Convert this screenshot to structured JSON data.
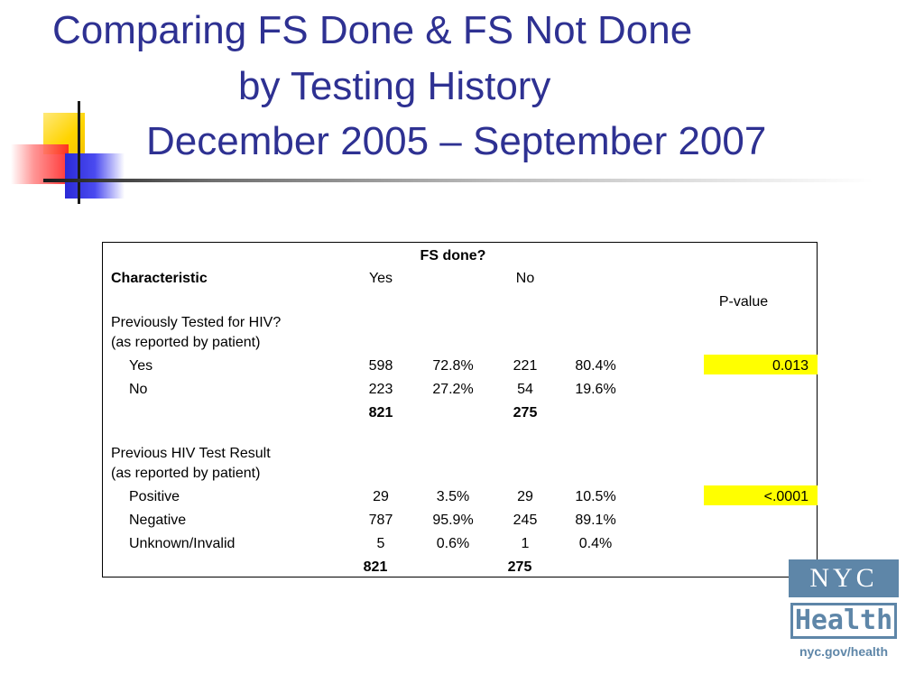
{
  "slide": {
    "title_line1": "Comparing FS Done & FS Not Done",
    "title_line2": "by Testing History",
    "title_line3": "December 2005 – September 2007",
    "title_color": "#2e3192"
  },
  "table": {
    "group_header": "FS done?",
    "col_characteristic": "Characteristic",
    "col_yes": "Yes",
    "col_no": "No",
    "col_pvalue": "P-value",
    "highlight_color": "#ffff00",
    "section1": {
      "label_line1": "Previously Tested for HIV?",
      "label_line2": "(as reported by patient)",
      "rows": [
        {
          "label": "Yes",
          "yes_n": "598",
          "yes_pct": "72.8%",
          "no_n": "221",
          "no_pct": "80.4%",
          "pvalue": "0.013"
        },
        {
          "label": "No",
          "yes_n": "223",
          "yes_pct": "27.2%",
          "no_n": "54",
          "no_pct": "19.6%",
          "pvalue": ""
        }
      ],
      "total_yes": "821",
      "total_no": "275"
    },
    "section2": {
      "label_line1": "Previous HIV Test Result",
      "label_line2": "(as reported by patient)",
      "rows": [
        {
          "label": "Positive",
          "yes_n": "29",
          "yes_pct": "3.5%",
          "no_n": "29",
          "no_pct": "10.5%",
          "pvalue": "<.0001"
        },
        {
          "label": "Negative",
          "yes_n": "787",
          "yes_pct": "95.9%",
          "no_n": "245",
          "no_pct": "89.1%",
          "pvalue": ""
        },
        {
          "label": "Unknown/Invalid",
          "yes_n": "5",
          "yes_pct": "0.6%",
          "no_n": "1",
          "no_pct": "0.4%",
          "pvalue": ""
        }
      ],
      "total_yes": "821",
      "total_no": "275"
    }
  },
  "logo": {
    "top": "NYC",
    "middle": "Health",
    "url": "nyc.gov/health",
    "color": "#5e86a8"
  }
}
